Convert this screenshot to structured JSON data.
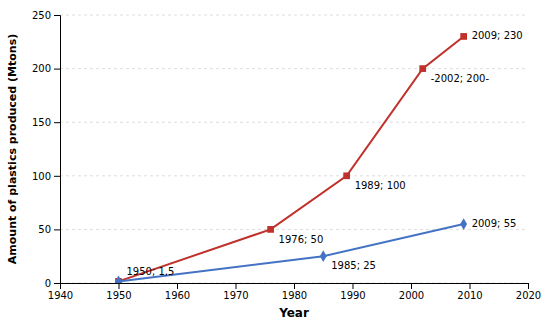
{
  "chart_data": {
    "type": "line",
    "xlabel": "Year",
    "ylabel": "Amount of plastics produced (Mtons)",
    "series": [
      {
        "color": "#C0312B",
        "marker": "square",
        "x": [
          1950,
          1976,
          1989,
          2002,
          2009
        ],
        "values": [
          1.5,
          50,
          100,
          200,
          230
        ]
      },
      {
        "color": "#4472C4",
        "marker": "diamond",
        "x": [
          1950,
          1985,
          2009
        ],
        "values": [
          1.5,
          25,
          55
        ]
      }
    ],
    "annotations": [
      {
        "text": "1950; 1,5",
        "x": 1950,
        "y": 1.5
      },
      {
        "text": "1976; 50",
        "x": 1976,
        "y": 50
      },
      {
        "text": "1989; 100",
        "x": 1989,
        "y": 100
      },
      {
        "text": "-2002; 200-",
        "x": 2002,
        "y": 200
      },
      {
        "text": "2009; 230",
        "x": 2009,
        "y": 230
      },
      {
        "text": "1985; 25",
        "x": 1985,
        "y": 25
      },
      {
        "text": "2009; 55",
        "x": 2009,
        "y": 55
      }
    ],
    "xlim": [
      1940,
      2020
    ],
    "ylim": [
      0,
      250
    ],
    "xticks": [
      1940,
      1950,
      1960,
      1970,
      1980,
      1990,
      2000,
      2010,
      2020
    ],
    "yticks": [
      0,
      50,
      100,
      150,
      200,
      250
    ],
    "grid": true
  }
}
